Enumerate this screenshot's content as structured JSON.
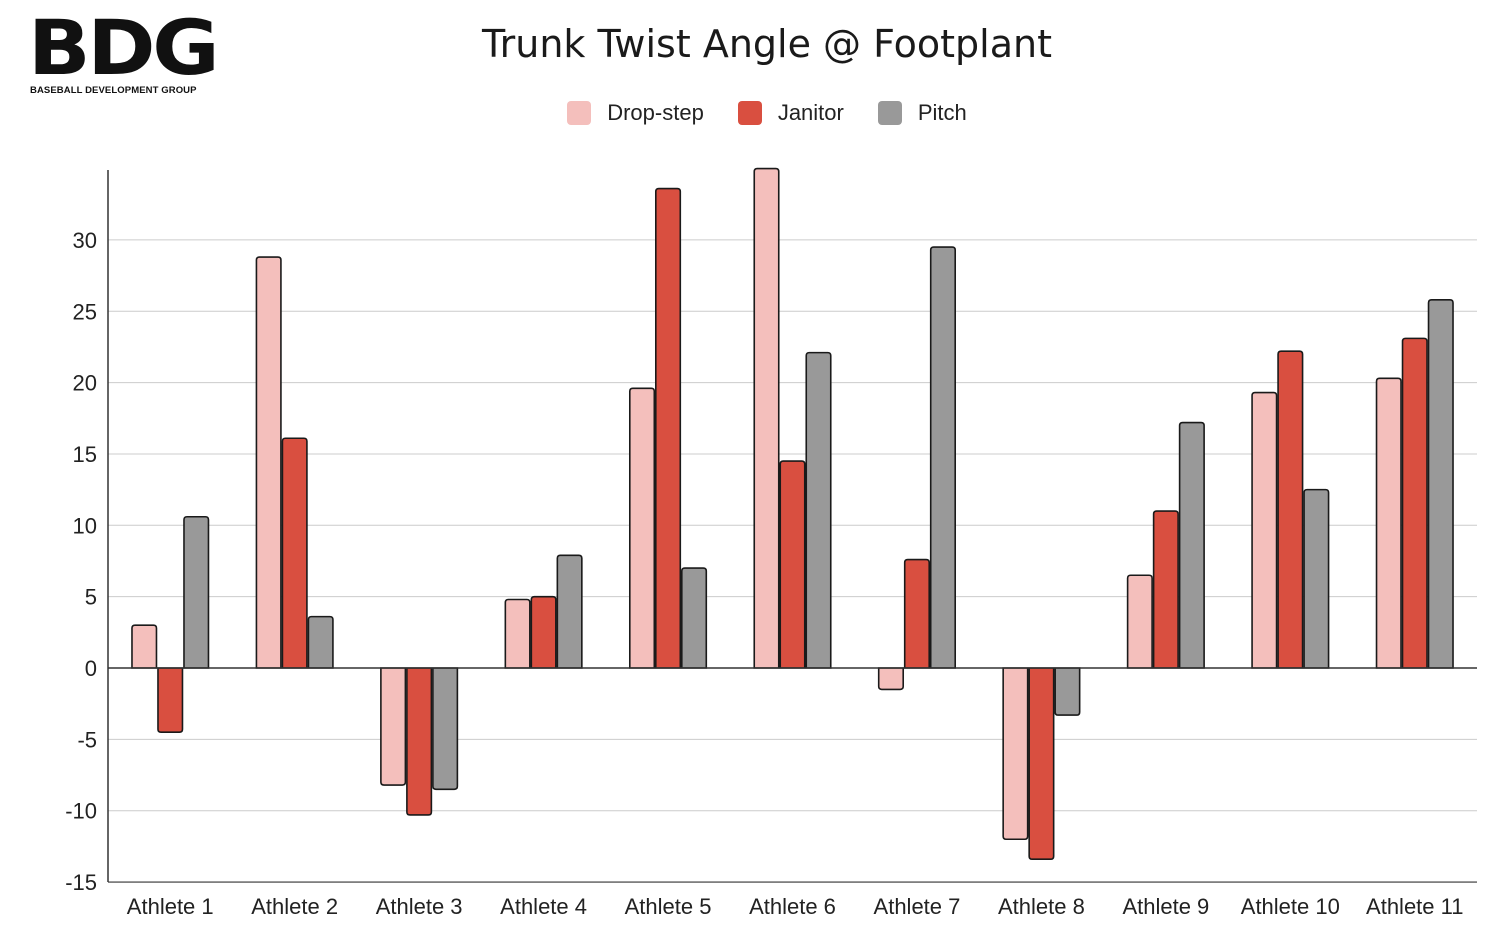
{
  "logo": {
    "mark": "BDG",
    "subtitle": "BASEBALL DEVELOPMENT GROUP"
  },
  "chart_data": {
    "type": "bar",
    "title": "Trunk Twist Angle @ Footplant",
    "xlabel": "",
    "ylabel": "",
    "categories": [
      "Athlete 1",
      "Athlete 2",
      "Athlete 3",
      "Athlete 4",
      "Athlete 5",
      "Athlete 6",
      "Athlete 7",
      "Athlete 8",
      "Athlete 9",
      "Athlete 10",
      "Athlete 11"
    ],
    "series": [
      {
        "name": "Drop-step",
        "color": "#f4bfbc",
        "values": [
          3.0,
          28.8,
          -8.2,
          4.8,
          19.6,
          35.0,
          -1.5,
          -12.0,
          6.5,
          19.3,
          20.3
        ]
      },
      {
        "name": "Janitor",
        "color": "#d94f40",
        "values": [
          -4.5,
          16.1,
          -10.3,
          5.0,
          33.6,
          14.5,
          7.6,
          -13.4,
          11.0,
          22.2,
          23.1
        ]
      },
      {
        "name": "Pitch",
        "color": "#999999",
        "values": [
          10.6,
          3.6,
          -8.5,
          7.9,
          7.0,
          22.1,
          29.5,
          -3.3,
          17.2,
          12.5,
          25.8
        ]
      }
    ],
    "yticks": [
      "30",
      "25",
      "20",
      "15",
      "10",
      "5",
      "0",
      "-5",
      "-10",
      "-15"
    ],
    "ylim": [
      -15,
      35
    ],
    "grid": true,
    "legend_position": "top-center"
  }
}
